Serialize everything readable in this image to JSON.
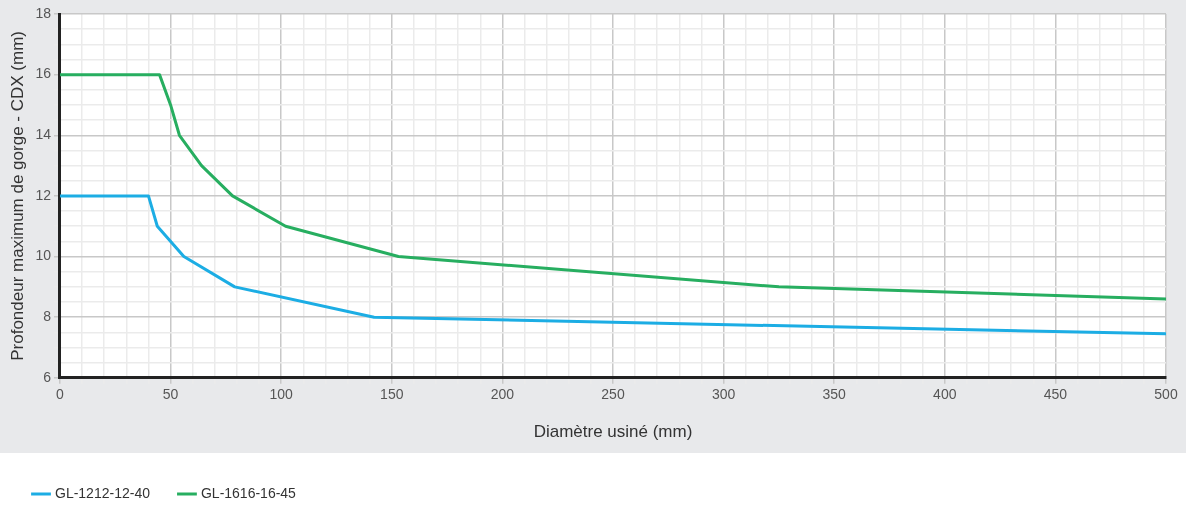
{
  "chart_data": {
    "type": "line",
    "xlabel": "Diamètre usiné (mm)",
    "ylabel": "Profondeur maximum de gorge - CDX (mm)",
    "series": [
      {
        "name": "GL-1212-12-40",
        "color": "#1cade4",
        "x": [
          0,
          40,
          44,
          56,
          79,
          142,
          500
        ],
        "values": [
          12,
          12,
          11,
          10,
          9,
          8,
          7.45
        ]
      },
      {
        "name": "GL-1616-16-45",
        "color": "#27ae60",
        "x": [
          0,
          45,
          50,
          54,
          64,
          78,
          102,
          153,
          325,
          500
        ],
        "values": [
          16,
          16,
          15,
          14,
          13,
          12,
          11,
          10,
          9,
          8.6
        ]
      }
    ],
    "xlim": [
      0,
      500
    ],
    "xticks": [
      0,
      {
        "value": 10,
        "label": null
      },
      {
        "value": 20,
        "label": null
      },
      {
        "value": 30,
        "label": null
      },
      {
        "value": 40,
        "label": null
      },
      50,
      {
        "value": 60,
        "label": null
      },
      {
        "value": 70,
        "label": null
      },
      {
        "value": 80,
        "label": null
      },
      {
        "value": 90,
        "label": null
      },
      100,
      {
        "value": 110,
        "label": null
      },
      {
        "value": 120,
        "label": null
      },
      {
        "value": 130,
        "label": null
      },
      {
        "value": 140,
        "label": null
      },
      150,
      {
        "value": 160,
        "label": null
      },
      {
        "value": 170,
        "label": null
      },
      {
        "value": 180,
        "label": null
      },
      {
        "value": 190,
        "label": null
      },
      200,
      {
        "value": 210,
        "label": null
      },
      {
        "value": 220,
        "label": null
      },
      {
        "value": 230,
        "label": null
      },
      {
        "value": 240,
        "label": null
      },
      250,
      {
        "value": 260,
        "label": null
      },
      {
        "value": 270,
        "label": null
      },
      {
        "value": 280,
        "label": null
      },
      {
        "value": 290,
        "label": null
      },
      300,
      {
        "value": 310,
        "label": null
      },
      {
        "value": 320,
        "label": null
      },
      {
        "value": 330,
        "label": null
      },
      {
        "value": 340,
        "label": null
      },
      350,
      {
        "value": 360,
        "label": null
      },
      {
        "value": 370,
        "label": null
      },
      {
        "value": 380,
        "label": null
      },
      {
        "value": 390,
        "label": null
      },
      400,
      {
        "value": 410,
        "label": null
      },
      {
        "value": 420,
        "label": null
      },
      {
        "value": 430,
        "label": null
      },
      {
        "value": 440,
        "label": null
      },
      450,
      {
        "value": 460,
        "label": null
      },
      {
        "value": 470,
        "label": null
      },
      {
        "value": 480,
        "label": null
      },
      {
        "value": 490,
        "label": null
      },
      500
    ],
    "ylim": [
      6,
      18
    ],
    "yticks": [
      6,
      {
        "value": 6.5,
        "label": null
      },
      {
        "value": 7,
        "label": null
      },
      {
        "value": 7.5,
        "label": null
      },
      8,
      {
        "value": 8.5,
        "label": null
      },
      {
        "value": 9,
        "label": null
      },
      {
        "value": 9.5,
        "label": null
      },
      10,
      {
        "value": 10.5,
        "label": null
      },
      {
        "value": 11,
        "label": null
      },
      {
        "value": 11.5,
        "label": null
      },
      12,
      {
        "value": 12.5,
        "label": null
      },
      {
        "value": 13,
        "label": null
      },
      {
        "value": 13.5,
        "label": null
      },
      14,
      {
        "value": 14.5,
        "label": null
      },
      {
        "value": 15,
        "label": null
      },
      {
        "value": 15.5,
        "label": null
      },
      16,
      {
        "value": 16.5,
        "label": null
      },
      {
        "value": 17,
        "label": null
      },
      {
        "value": 17.5,
        "label": null
      },
      18
    ],
    "grid": true,
    "legend": "bottom left",
    "marker": "none",
    "line_style": "solid"
  }
}
